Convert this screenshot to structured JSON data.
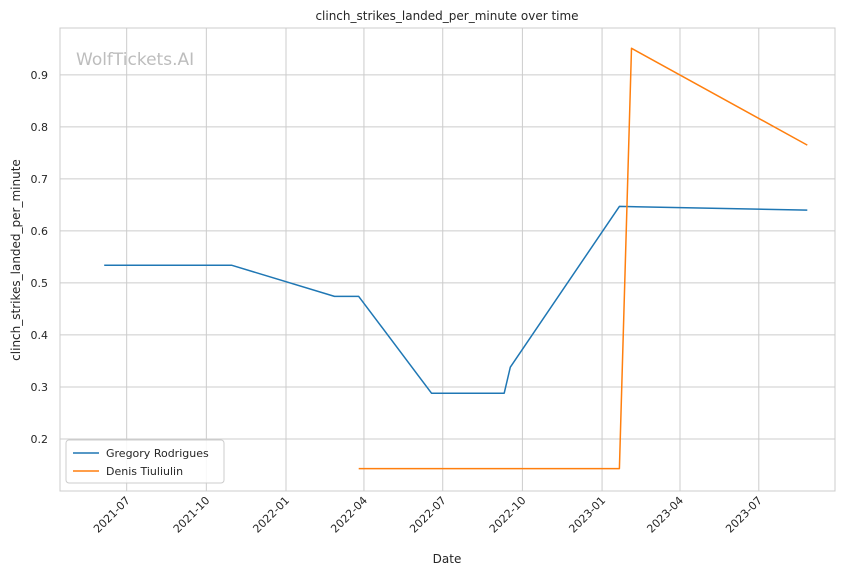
{
  "watermark": "WolfTickets.AI",
  "chart_data": {
    "type": "line",
    "title": "clinch_strikes_landed_per_minute over time",
    "xlabel": "Date",
    "ylabel": "clinch_strikes_landed_per_minute",
    "x_type": "date",
    "xlim": [
      "2021-04-15",
      "2023-09-27"
    ],
    "ylim": [
      0.1,
      0.99
    ],
    "x_ticks": [
      "2021-07-01",
      "2021-10-01",
      "2022-01-01",
      "2022-04-01",
      "2022-07-01",
      "2022-10-01",
      "2023-01-01",
      "2023-04-01",
      "2023-07-01"
    ],
    "x_tick_labels": [
      "2021-07",
      "2021-10",
      "2022-01",
      "2022-04",
      "2022-07",
      "2022-10",
      "2023-01",
      "2023-04",
      "2023-07"
    ],
    "y_ticks": [
      0.2,
      0.3,
      0.4,
      0.5,
      0.6,
      0.7,
      0.8,
      0.9
    ],
    "y_tick_labels": [
      "0.2",
      "0.3",
      "0.4",
      "0.5",
      "0.6",
      "0.7",
      "0.8",
      "0.9"
    ],
    "grid": true,
    "legend_position": "bottom-left",
    "series": [
      {
        "name": "Gregory Rodrigues",
        "color": "#1f77b4",
        "points": [
          {
            "x": "2021-06-05",
            "y": 0.534
          },
          {
            "x": "2021-10-30",
            "y": 0.534
          },
          {
            "x": "2022-02-26",
            "y": 0.474
          },
          {
            "x": "2022-03-26",
            "y": 0.474
          },
          {
            "x": "2022-06-18",
            "y": 0.288
          },
          {
            "x": "2022-09-10",
            "y": 0.288
          },
          {
            "x": "2022-09-17",
            "y": 0.338
          },
          {
            "x": "2023-01-21",
            "y": 0.647
          },
          {
            "x": "2023-08-26",
            "y": 0.64
          }
        ]
      },
      {
        "name": "Denis Tiuliulin",
        "color": "#ff7f0e",
        "points": [
          {
            "x": "2022-03-26",
            "y": 0.143
          },
          {
            "x": "2023-01-21",
            "y": 0.143
          },
          {
            "x": "2023-02-04",
            "y": 0.951
          },
          {
            "x": "2023-08-26",
            "y": 0.765
          }
        ]
      }
    ]
  }
}
